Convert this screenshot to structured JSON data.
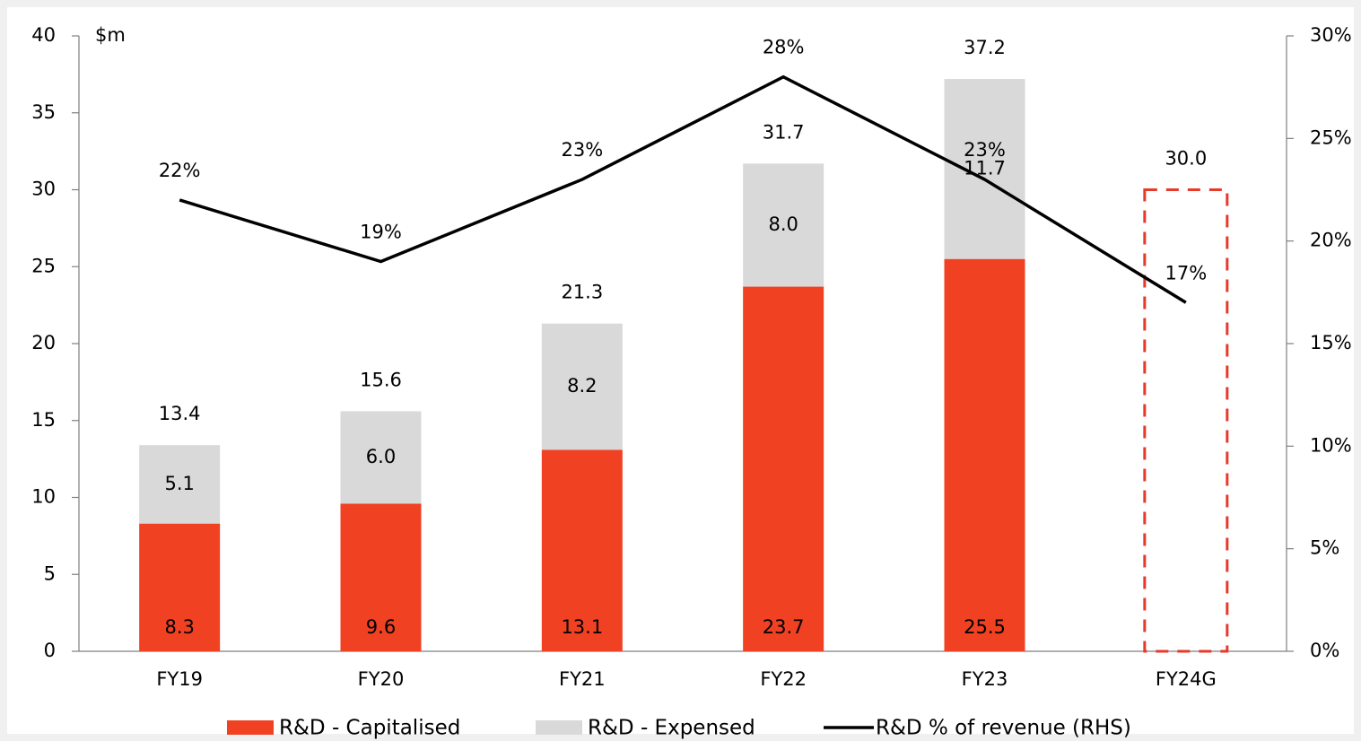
{
  "chart_data": {
    "type": "stacked-bar-line",
    "y_unit": "$m",
    "categories": [
      "FY19",
      "FY20",
      "FY21",
      "FY22",
      "FY23",
      "FY24G"
    ],
    "series": [
      {
        "name": "R&D - Capitalised",
        "color": "#f04123",
        "values": [
          8.3,
          9.6,
          13.1,
          23.7,
          25.5,
          null
        ]
      },
      {
        "name": "R&D - Expensed",
        "color": "#d9d9d9",
        "values": [
          5.1,
          6.0,
          8.2,
          8.0,
          11.7,
          null
        ],
        "value_labels": [
          "5.1",
          "6.0",
          "8.2",
          "8.0",
          "11.7",
          null
        ]
      },
      {
        "name": "R&D % of revenue (RHS)",
        "color": "#000000",
        "axis": "y2",
        "type": "line",
        "values": [
          22,
          19,
          23,
          28,
          23,
          17
        ],
        "value_labels": [
          "22%",
          "19%",
          "23%",
          "28%",
          "23%",
          "17%"
        ]
      }
    ],
    "totals": {
      "values": [
        13.4,
        15.6,
        21.3,
        31.7,
        37.2,
        30.0
      ],
      "value_labels": [
        "13.4",
        "15.6",
        "21.3",
        "31.7",
        "37.2",
        "30.0"
      ],
      "dashed_color": "#e8392a"
    },
    "ylim": [
      0,
      40
    ],
    "yticks": [
      0,
      5,
      10,
      15,
      20,
      25,
      30,
      35,
      40
    ],
    "y2lim": [
      0,
      30
    ],
    "y2ticks": [
      {
        "value": 0,
        "label": "0%"
      },
      {
        "value": 5,
        "label": "5%"
      },
      {
        "value": 10,
        "label": "10%"
      },
      {
        "value": 15,
        "label": "15%"
      },
      {
        "value": 20,
        "label": "20%"
      },
      {
        "value": 25,
        "label": "25%"
      },
      {
        "value": 30,
        "label": "30%"
      }
    ],
    "legend": "bottom"
  }
}
